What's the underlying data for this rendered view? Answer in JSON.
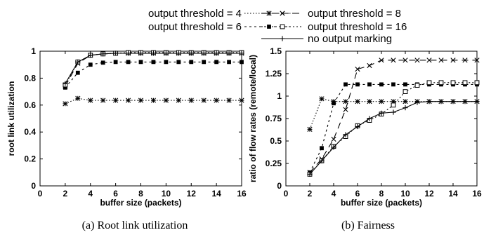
{
  "legend": {
    "entries": [
      {
        "series": "t4",
        "label": "output threshold = 4"
      },
      {
        "series": "t8",
        "label": "output threshold = 8"
      },
      {
        "series": "t6",
        "label": "output threshold = 6"
      },
      {
        "series": "t16",
        "label": "output threshold = 16"
      },
      {
        "series": "none",
        "label": "no output marking"
      }
    ]
  },
  "captions": {
    "left": "(a) Root link utilization",
    "right": "(b) Fairness"
  },
  "chart_data": [
    {
      "type": "line",
      "xlabel": "buffer size (packets)",
      "ylabel": "root link utilization",
      "xlim": [
        0,
        16
      ],
      "ylim": [
        0,
        1
      ],
      "xticks": [
        "0",
        "2",
        "4",
        "6",
        "8",
        "10",
        "12",
        "14",
        "16"
      ],
      "yticks": [
        "0",
        "0.2",
        "0.4",
        "0.6",
        "0.8",
        "1"
      ],
      "x": [
        2,
        3,
        4,
        5,
        6,
        7,
        8,
        9,
        10,
        11,
        12,
        13,
        14,
        15,
        16
      ],
      "series": [
        {
          "name": "output threshold = 4",
          "values": [
            0.61,
            0.65,
            0.635,
            0.635,
            0.635,
            0.635,
            0.635,
            0.635,
            0.635,
            0.635,
            0.635,
            0.635,
            0.635,
            0.635,
            0.635
          ]
        },
        {
          "name": "output threshold = 8",
          "values": [
            0.74,
            0.91,
            0.97,
            0.98,
            0.985,
            0.985,
            0.985,
            0.985,
            0.985,
            0.985,
            0.985,
            0.985,
            0.985,
            0.985,
            0.985
          ]
        },
        {
          "name": "output threshold = 6",
          "values": [
            0.73,
            0.84,
            0.9,
            0.915,
            0.92,
            0.92,
            0.92,
            0.92,
            0.92,
            0.92,
            0.92,
            0.92,
            0.92,
            0.92,
            0.92
          ]
        },
        {
          "name": "output threshold = 16",
          "values": [
            0.75,
            0.92,
            0.97,
            0.98,
            0.985,
            0.99,
            0.99,
            0.99,
            0.99,
            0.99,
            0.99,
            0.99,
            0.99,
            0.99,
            0.99
          ]
        },
        {
          "name": "no output marking",
          "values": [
            0.76,
            0.92,
            0.97,
            0.98,
            0.985,
            0.985,
            0.985,
            0.985,
            0.985,
            0.985,
            0.985,
            0.985,
            0.985,
            0.985,
            0.985
          ]
        }
      ]
    },
    {
      "type": "line",
      "xlabel": "buffer size (packets)",
      "ylabel": "ratio of flow rates (remote/local)",
      "xlim": [
        0,
        16
      ],
      "ylim": [
        0,
        1.5
      ],
      "xticks": [
        "0",
        "2",
        "4",
        "6",
        "8",
        "10",
        "12",
        "14",
        "16"
      ],
      "yticks": [
        "0",
        "0.25",
        "0.5",
        "0.75",
        "1",
        "1.25",
        "1.5"
      ],
      "x": [
        2,
        3,
        4,
        5,
        6,
        7,
        8,
        9,
        10,
        11,
        12,
        13,
        14,
        15,
        16
      ],
      "series": [
        {
          "name": "output threshold = 4",
          "values": [
            0.63,
            0.97,
            0.94,
            0.94,
            0.94,
            0.94,
            0.94,
            0.94,
            0.94,
            0.94,
            0.94,
            0.94,
            0.94,
            0.94,
            0.94
          ]
        },
        {
          "name": "output threshold = 8",
          "values": [
            0.15,
            0.3,
            0.52,
            0.85,
            1.3,
            1.34,
            1.4,
            1.4,
            1.4,
            1.4,
            1.4,
            1.4,
            1.4,
            1.4,
            1.4
          ]
        },
        {
          "name": "output threshold = 6",
          "values": [
            0.15,
            0.42,
            0.92,
            1.13,
            1.13,
            1.13,
            1.13,
            1.13,
            1.13,
            1.13,
            1.13,
            1.13,
            1.13,
            1.13,
            1.13
          ]
        },
        {
          "name": "output threshold = 16",
          "values": [
            0.13,
            0.28,
            0.44,
            0.55,
            0.67,
            0.73,
            0.8,
            0.9,
            1.05,
            1.12,
            1.15,
            1.15,
            1.15,
            1.15,
            1.15
          ]
        },
        {
          "name": "no output marking",
          "values": [
            0.13,
            0.28,
            0.43,
            0.57,
            0.66,
            0.75,
            0.81,
            0.82,
            0.87,
            0.93,
            0.94,
            0.94,
            0.94,
            0.94,
            0.94
          ]
        }
      ]
    }
  ]
}
